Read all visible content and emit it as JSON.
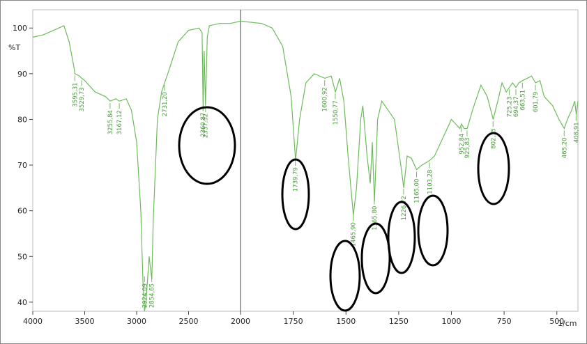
{
  "chart_data": {
    "type": "line",
    "y_label": "%T",
    "x_label": "1/cm",
    "xlim": [
      4000,
      400
    ],
    "x_scale_break": 2000,
    "xticks": [
      4000,
      3500,
      3000,
      2500,
      2000,
      1750,
      1500,
      1250,
      1000,
      750,
      500
    ],
    "ylim": [
      38,
      104
    ],
    "yticks": [
      40,
      50,
      60,
      70,
      80,
      90,
      100
    ],
    "series": [
      {
        "color": "#6dbb5a",
        "x": [
          4000,
          3900,
          3800,
          3700,
          3650,
          3600,
          3595,
          3550,
          3529,
          3500,
          3400,
          3300,
          3255,
          3200,
          3167,
          3100,
          3050,
          3000,
          2960,
          2940,
          2924,
          2910,
          2880,
          2854,
          2840,
          2800,
          2760,
          2731,
          2700,
          2600,
          2500,
          2400,
          2370,
          2360,
          2350,
          2337,
          2320,
          2300,
          2200,
          2100,
          2000,
          1900,
          1850,
          1800,
          1760,
          1739,
          1720,
          1690,
          1650,
          1600,
          1570,
          1550,
          1530,
          1510,
          1490,
          1465,
          1450,
          1430,
          1420,
          1400,
          1385,
          1375,
          1365,
          1350,
          1330,
          1300,
          1270,
          1240,
          1226,
          1210,
          1190,
          1165,
          1140,
          1103,
          1080,
          1050,
          1000,
          980,
          960,
          952,
          940,
          925,
          900,
          860,
          830,
          802,
          780,
          760,
          740,
          725,
          710,
          694,
          680,
          663,
          640,
          620,
          601,
          580,
          560,
          520,
          490,
          465,
          450,
          430,
          415,
          408,
          400
        ],
        "values": [
          98,
          98.5,
          99.5,
          100.5,
          97,
          91,
          90,
          89.5,
          89,
          88.5,
          86,
          85,
          84,
          84.5,
          84,
          84.5,
          82,
          75,
          60,
          45,
          38,
          40,
          50,
          45,
          58,
          80,
          86,
          88,
          90,
          97,
          99.5,
          100,
          99,
          82,
          95,
          83,
          98,
          100.5,
          101,
          101,
          101.5,
          101,
          100,
          96,
          85,
          71,
          80,
          88,
          90,
          89,
          89.5,
          86,
          89,
          84,
          72,
          59,
          65,
          80,
          83,
          72,
          66,
          75,
          62,
          80,
          84,
          82,
          80,
          70,
          65,
          72,
          71.5,
          69,
          70,
          71,
          72,
          75,
          80,
          79,
          78,
          79,
          78,
          78,
          82,
          87.5,
          85,
          80,
          84,
          88,
          86,
          87,
          88,
          87,
          88,
          88.5,
          89,
          89.5,
          88,
          88.5,
          85,
          83,
          80,
          78,
          80,
          82,
          84,
          81,
          84
        ]
      }
    ],
    "peaks": [
      {
        "x": 3595.31,
        "label": "3595,31"
      },
      {
        "x": 3529.73,
        "label": "3529,73"
      },
      {
        "x": 3255.84,
        "label": "3255,84"
      },
      {
        "x": 3167.12,
        "label": "3167,12"
      },
      {
        "x": 2924.09,
        "label": "2924,09"
      },
      {
        "x": 2854.65,
        "label": "2854,65"
      },
      {
        "x": 2731.2,
        "label": "2731,20"
      },
      {
        "x": 2360.87,
        "label": "2360,87"
      },
      {
        "x": 2337.32,
        "label": "2337,32"
      },
      {
        "x": 1739.79,
        "label": "1739,79"
      },
      {
        "x": 1600.92,
        "label": "1600,92"
      },
      {
        "x": 1550.77,
        "label": "1550,77"
      },
      {
        "x": 1465.9,
        "label": "1465,90"
      },
      {
        "x": 1365.8,
        "label": "1365,80"
      },
      {
        "x": 1226.72,
        "label": "1226,72"
      },
      {
        "x": 1165.0,
        "label": "1165,00"
      },
      {
        "x": 1103.28,
        "label": "1103,28"
      },
      {
        "x": 952.84,
        "label": "952,84"
      },
      {
        "x": 925.83,
        "label": "925,83"
      },
      {
        "x": 802.35,
        "label": "802,35"
      },
      {
        "x": 725.23,
        "label": "725,23"
      },
      {
        "x": 694.37,
        "label": "694,37"
      },
      {
        "x": 663.51,
        "label": "663,51"
      },
      {
        "x": 601.79,
        "label": "601,79"
      },
      {
        "x": 465.2,
        "label": "465,20"
      },
      {
        "x": 408.91,
        "label": "408,91"
      }
    ]
  }
}
